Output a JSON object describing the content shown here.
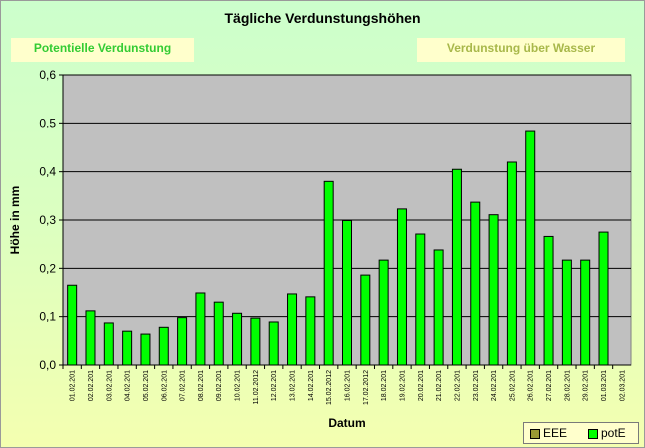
{
  "chart_data": {
    "type": "bar",
    "title": "Tägliche Verdunstungshöhen",
    "xlabel": "Datum",
    "ylabel": "Höhe in mm",
    "ylim": [
      0,
      0.6
    ],
    "yticks": [
      "0,0",
      "0,1",
      "0,2",
      "0,3",
      "0,4",
      "0.5",
      "0,6"
    ],
    "ytick_values": [
      0,
      0.1,
      0.2,
      0.3,
      0.4,
      0.5,
      0.6
    ],
    "grid": true,
    "legend_position": "bottom-right",
    "categories": [
      "01.02.201",
      "02.02.201",
      "03.02.201",
      "04.02.201",
      "05.02.201",
      "06.02.201",
      "07.02.201",
      "08.02.201",
      "09.02.201",
      "10.02.201",
      "11.02.2012",
      "12.02.201",
      "13.02.201",
      "14.02.201",
      "15.02.2012",
      "16.02.201",
      "17.02.2012",
      "18.02.201",
      "19.02.201",
      "20.02.201",
      "21.02.201",
      "22.02.201",
      "23.02.201",
      "24.02.201",
      "25.02.201",
      "26.02.201",
      "27.02.201",
      "28.02.201",
      "29.02.201",
      "01.03.201",
      "02.03.201"
    ],
    "series": [
      {
        "name": "EEE",
        "color": "#999933",
        "values": [
          null,
          null,
          null,
          null,
          null,
          null,
          null,
          null,
          null,
          null,
          null,
          null,
          null,
          null,
          null,
          null,
          null,
          null,
          null,
          null,
          null,
          null,
          null,
          null,
          null,
          null,
          null,
          null,
          null,
          null,
          null
        ]
      },
      {
        "name": "potE",
        "color": "#00ff00",
        "values": [
          0.165,
          0.112,
          0.087,
          0.07,
          0.064,
          0.078,
          0.098,
          0.149,
          0.13,
          0.107,
          0.097,
          0.089,
          0.147,
          0.141,
          0.38,
          0.299,
          0.186,
          0.217,
          0.323,
          0.271,
          0.238,
          0.405,
          0.337,
          0.311,
          0.42,
          0.484,
          0.266,
          0.217,
          0.217,
          0.275,
          null
        ]
      }
    ]
  },
  "banners": {
    "left": "Potentielle Verdunstung",
    "right": "Verdunstung über Wasser"
  },
  "colors": {
    "plot_background": "#c0c0c0",
    "bar_fill": "#00ff00",
    "left_banner_text": "#33cc33",
    "right_banner_text": "#a8b84a"
  }
}
